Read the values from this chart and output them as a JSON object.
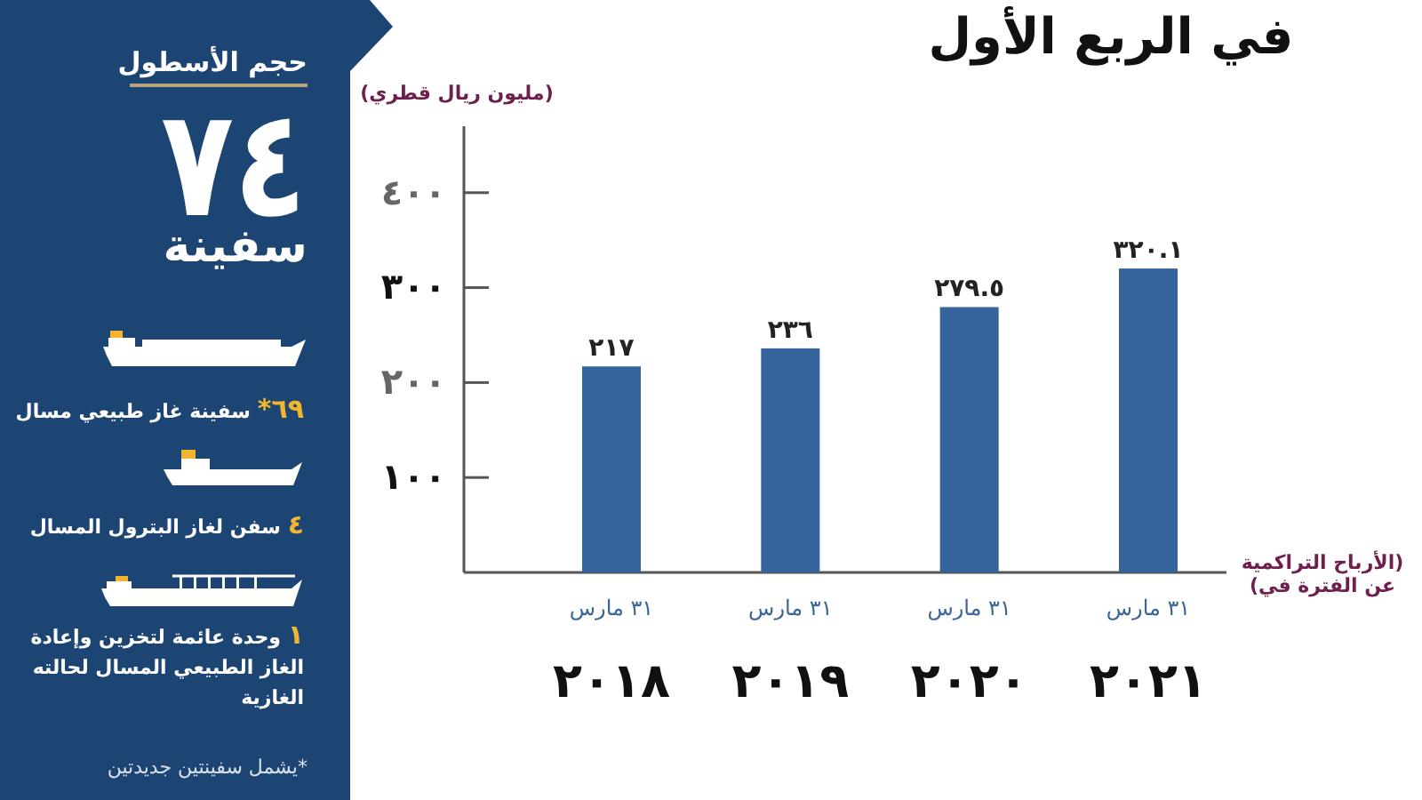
{
  "chart_data": [
    {
      "type": "bar",
      "title": "في الربع الأول",
      "ylabel": "(مليون ريال قطري)",
      "xlabel": "(الأرباح التراكمية عن الفترة في)",
      "categories": [
        "٣١ مارس\n٢٠١٨",
        "٣١ مارس\n٢٠١٩",
        "٣١ مارس\n٢٠٢٠",
        "٣١ مارس\n٢٠٢١"
      ],
      "values": [
        217,
        236,
        279.5,
        320.1
      ],
      "value_labels": [
        "٢١٧",
        "٢٣٦",
        "٢٧٩.٥",
        "٣٢٠.١"
      ],
      "color": "#34649b",
      "ylim": [
        0,
        470
      ],
      "yticks": [
        {
          "value": 100,
          "label": "١٠٠"
        },
        {
          "value": 200,
          "label": "٢٠٠"
        },
        {
          "value": 300,
          "label": "٣٠٠"
        },
        {
          "value": 400,
          "label": "٤٠٠"
        }
      ]
    },
    {
      "type": "other",
      "title": "حجم الأسطول",
      "annotations": [
        "٧٤",
        "سفينة",
        "٦٩* سفينة غاز طبيعي مسال",
        "٤ سفن لغاز البترول المسال",
        "١ وحدة عائمة لتخزين وإعادة الغاز الطبيعي المسال لحالته الغازية",
        "*يشمل سفينتين جديدتين"
      ]
    }
  ]
}
